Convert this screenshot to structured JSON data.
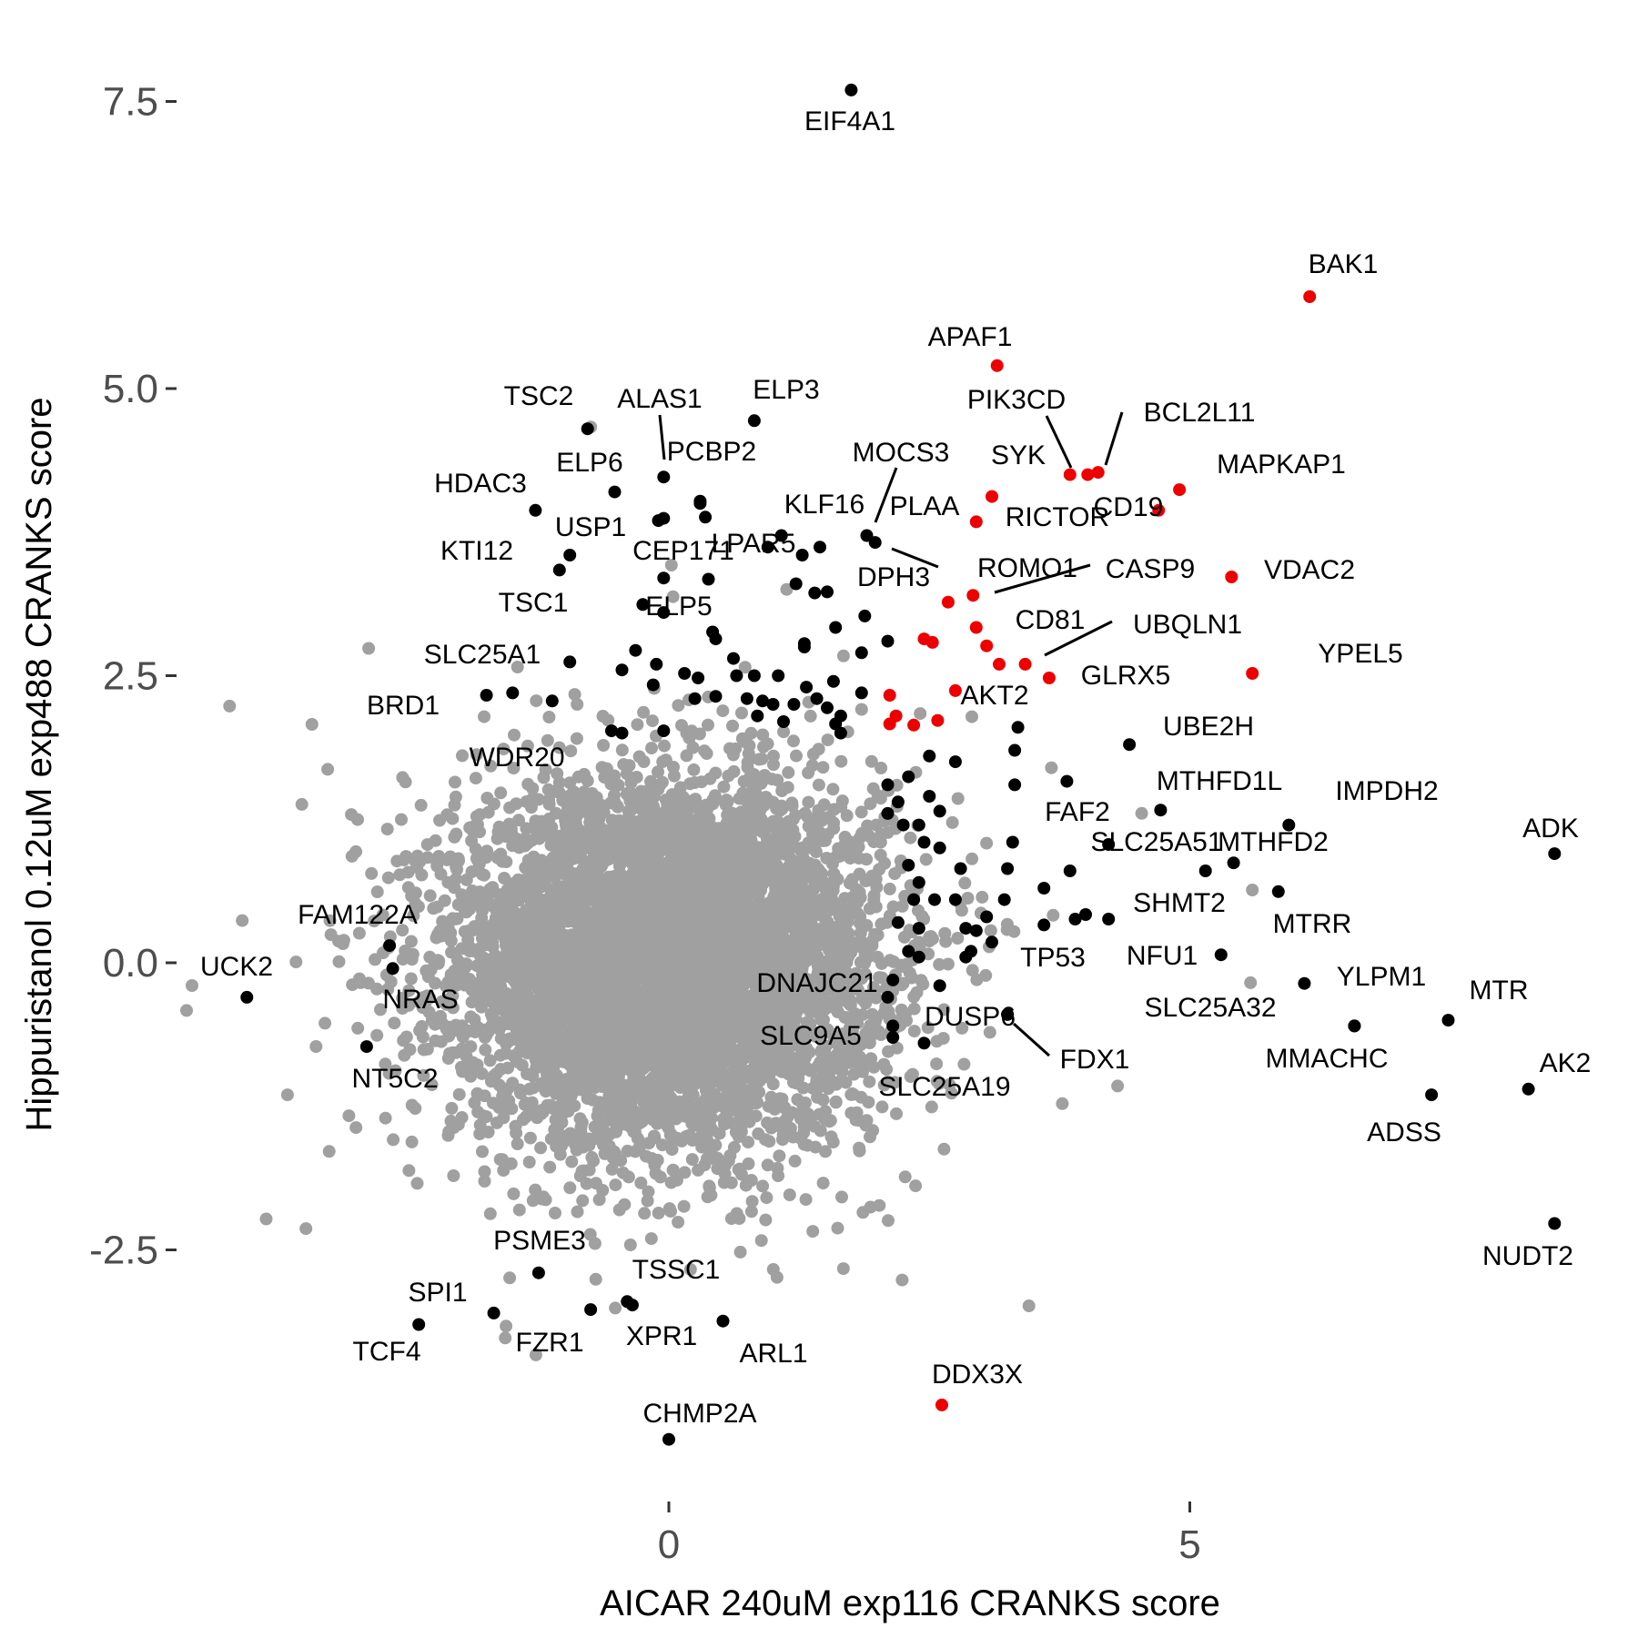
{
  "chart_data": {
    "type": "scatter",
    "title": "",
    "xlabel": "AICAR 240uM exp116 CRANKS score",
    "ylabel": "Hippuristanol 0.12uM exp488 CRANKS score",
    "xlim": [
      -4.4,
      9.1
    ],
    "ylim": [
      -4.5,
      7.6
    ],
    "x_ticks": [
      0,
      5
    ],
    "x_tick_labels": [
      "0",
      "5"
    ],
    "y_ticks": [
      -2.5,
      0,
      2.5,
      5,
      7.5
    ],
    "y_tick_labels": [
      "-2.5",
      "0.0",
      "2.5",
      "5.0",
      "7.5"
    ],
    "grid": false,
    "legend": "none",
    "colors": {
      "background": "#a0a0a0",
      "highlight": "#000000",
      "red": "#ee0000"
    },
    "cloud": {
      "center": [
        0.0,
        0.0
      ],
      "sd": [
        1.3,
        0.95
      ],
      "count": 6000,
      "outlier_count": 260
    },
    "series": [
      {
        "color": "#ee0000",
        "points": [
          {
            "label": "BAK1",
            "x": 6.15,
            "y": 5.8
          },
          {
            "label": "APAF1",
            "x": 3.15,
            "y": 5.2
          },
          {
            "label": "PIK3CD",
            "x": 3.85,
            "y": 4.25
          },
          {
            "label": "SYK",
            "x": 4.02,
            "y": 4.25
          },
          {
            "label": "BCL2L11",
            "x": 4.12,
            "y": 4.27
          },
          {
            "label": "MAPKAP1",
            "x": 4.9,
            "y": 4.12
          },
          {
            "label": "CD19",
            "x": 4.7,
            "y": 3.94
          },
          {
            "label": "RICTOR",
            "x": 3.1,
            "y": 4.06
          },
          {
            "label": "PLAA",
            "x": 2.95,
            "y": 3.84
          },
          {
            "label": "VDAC2",
            "x": 5.4,
            "y": 3.36
          },
          {
            "label": "CASP9",
            "x": 2.92,
            "y": 3.2
          },
          {
            "label": "ROMO1",
            "x": 2.68,
            "y": 3.14
          },
          {
            "label": "CD81",
            "x": 2.95,
            "y": 2.92
          },
          {
            "label": "YPEL5",
            "x": 5.6,
            "y": 2.52
          },
          {
            "label": "UBQLN1",
            "x": 3.42,
            "y": 2.6
          },
          {
            "label": "GLRX5",
            "x": 3.65,
            "y": 2.48
          },
          {
            "label": "AKT2",
            "x": 2.12,
            "y": 2.33
          },
          {
            "label": "DDX3X",
            "x": 2.62,
            "y": -3.85
          },
          {
            "x": 2.45,
            "y": 2.82
          },
          {
            "x": 2.53,
            "y": 2.79
          },
          {
            "x": 3.05,
            "y": 2.76
          },
          {
            "x": 3.17,
            "y": 2.6
          },
          {
            "x": 2.75,
            "y": 2.37
          },
          {
            "x": 2.18,
            "y": 2.15
          },
          {
            "x": 2.12,
            "y": 2.08
          },
          {
            "x": 2.35,
            "y": 2.07
          },
          {
            "x": 2.58,
            "y": 2.11
          }
        ]
      },
      {
        "color": "#000000",
        "points": [
          {
            "label": "EIF4A1",
            "x": 1.75,
            "y": 7.6
          },
          {
            "label": "ELP3",
            "x": 0.82,
            "y": 4.72
          },
          {
            "label": "TSC2",
            "x": -0.78,
            "y": 4.65
          },
          {
            "label": "ALAS1",
            "x": -0.05,
            "y": 4.23
          },
          {
            "label": "PCBP2",
            "x": 0.3,
            "y": 4.02
          },
          {
            "label": "ELP6",
            "x": -0.52,
            "y": 4.1
          },
          {
            "label": "HDAC3",
            "x": -1.28,
            "y": 3.94
          },
          {
            "label": "USP1",
            "x": -0.1,
            "y": 3.85
          },
          {
            "label": "MOCS3",
            "x": 1.98,
            "y": 3.66
          },
          {
            "label": "KLF16",
            "x": 1.9,
            "y": 3.72
          },
          {
            "label": "KTI12",
            "x": -0.95,
            "y": 3.55
          },
          {
            "label": "TSC1",
            "x": -1.05,
            "y": 3.42
          },
          {
            "label": "CEP171",
            "x": -0.05,
            "y": 3.35
          },
          {
            "label": "LPAR5",
            "x": 1.08,
            "y": 3.72
          },
          {
            "label": "DPH3",
            "x": 1.52,
            "y": 3.23
          },
          {
            "label": "ELP5",
            "x": -0.25,
            "y": 3.12
          },
          {
            "label": "SLC25A1",
            "x": -0.95,
            "y": 2.62
          },
          {
            "label": "BRD1",
            "x": -1.75,
            "y": 2.33
          },
          {
            "label": "WDR20",
            "x": -0.55,
            "y": 2.02
          },
          {
            "label": "UBE2H",
            "x": 4.42,
            "y": 1.9
          },
          {
            "label": "MTHFD1L",
            "x": 4.72,
            "y": 1.33
          },
          {
            "label": "IMPDH2",
            "x": 5.95,
            "y": 1.2
          },
          {
            "label": "ADK",
            "x": 8.5,
            "y": 0.95
          },
          {
            "label": "FAF2",
            "x": 3.82,
            "y": 1.58
          },
          {
            "label": "SLC25A51",
            "x": 4.22,
            "y": 1.03
          },
          {
            "label": "MTHFD2",
            "x": 5.42,
            "y": 0.87
          },
          {
            "label": "SHMT2",
            "x": 4.22,
            "y": 0.38
          },
          {
            "label": "MTRR",
            "x": 5.85,
            "y": 0.62
          },
          {
            "label": "TP53",
            "x": 3.6,
            "y": 0.33
          },
          {
            "label": "NFU1",
            "x": 5.3,
            "y": 0.07
          },
          {
            "label": "YLPM1",
            "x": 6.1,
            "y": -0.18
          },
          {
            "label": "MTR",
            "x": 7.48,
            "y": -0.5
          },
          {
            "label": "SLC25A32",
            "x": 6.58,
            "y": -0.55
          },
          {
            "label": "MMACHC",
            "x": 6.58,
            "y": -0.55
          },
          {
            "label": "AK2",
            "x": 8.25,
            "y": -1.1
          },
          {
            "label": "ADSS",
            "x": 7.32,
            "y": -1.15
          },
          {
            "label": "NUDT2",
            "x": 8.5,
            "y": -2.27
          },
          {
            "label": "FAM122A",
            "x": -2.68,
            "y": 0.15
          },
          {
            "label": "UCK2",
            "x": -4.05,
            "y": -0.3
          },
          {
            "label": "NRAS",
            "x": -2.65,
            "y": -0.05
          },
          {
            "label": "NT5C2",
            "x": -2.9,
            "y": -0.73
          },
          {
            "label": "DNAJC21",
            "x": 2.1,
            "y": -0.3
          },
          {
            "label": "DUSP6",
            "x": 3.25,
            "y": -0.45
          },
          {
            "label": "FDX1",
            "x": 3.25,
            "y": -0.45
          },
          {
            "label": "SLC9A5",
            "x": 2.15,
            "y": -0.65
          },
          {
            "label": "SLC25A19",
            "x": 2.45,
            "y": -0.7
          },
          {
            "label": "PSME3",
            "x": -1.25,
            "y": -2.7
          },
          {
            "label": "TSSC1",
            "x": -0.4,
            "y": -2.95
          },
          {
            "label": "SPI1",
            "x": -1.68,
            "y": -3.05
          },
          {
            "label": "TCF4",
            "x": -2.4,
            "y": -3.15
          },
          {
            "label": "FZR1",
            "x": -0.75,
            "y": -3.02
          },
          {
            "label": "XPR1",
            "x": -0.35,
            "y": -2.98
          },
          {
            "label": "ARL1",
            "x": 0.52,
            "y": -3.12
          },
          {
            "label": "CHMP2A",
            "x": 0.0,
            "y": -4.15
          },
          {
            "x": 0.3,
            "y": 4.0
          },
          {
            "x": 0.35,
            "y": 3.88
          },
          {
            "x": -0.05,
            "y": 3.87
          },
          {
            "x": 0.95,
            "y": 3.62
          },
          {
            "x": 1.28,
            "y": 3.55
          },
          {
            "x": 1.45,
            "y": 3.62
          },
          {
            "x": 0.38,
            "y": 3.34
          },
          {
            "x": 1.22,
            "y": 3.3
          },
          {
            "x": 1.4,
            "y": 3.22
          },
          {
            "x": 1.88,
            "y": 3.02
          },
          {
            "x": 1.6,
            "y": 2.92
          },
          {
            "x": -0.05,
            "y": 3.05
          },
          {
            "x": 0.42,
            "y": 2.88
          },
          {
            "x": 0.45,
            "y": 2.82
          },
          {
            "x": 1.3,
            "y": 2.78
          },
          {
            "x": 2.1,
            "y": 2.8
          },
          {
            "x": -0.32,
            "y": 2.72
          },
          {
            "x": -0.12,
            "y": 2.6
          },
          {
            "x": 0.62,
            "y": 2.65
          },
          {
            "x": 1.85,
            "y": 2.7
          },
          {
            "x": -1.5,
            "y": 2.35
          },
          {
            "x": -1.12,
            "y": 2.28
          },
          {
            "x": 1.3,
            "y": 2.75
          },
          {
            "x": 0.15,
            "y": 2.52
          },
          {
            "x": 0.28,
            "y": 2.48
          },
          {
            "x": 0.65,
            "y": 2.5
          },
          {
            "x": 0.82,
            "y": 2.5
          },
          {
            "x": 1.05,
            "y": 2.5
          },
          {
            "x": 1.58,
            "y": 2.45
          },
          {
            "x": 1.32,
            "y": 2.4
          },
          {
            "x": -0.45,
            "y": 2.55
          },
          {
            "x": -0.15,
            "y": 2.42
          },
          {
            "x": 0.25,
            "y": 2.3
          },
          {
            "x": 0.45,
            "y": 2.32
          },
          {
            "x": 0.75,
            "y": 2.3
          },
          {
            "x": 0.9,
            "y": 2.28
          },
          {
            "x": 1.0,
            "y": 2.25
          },
          {
            "x": 1.2,
            "y": 2.25
          },
          {
            "x": 1.42,
            "y": 2.3
          },
          {
            "x": 1.52,
            "y": 2.22
          },
          {
            "x": 1.65,
            "y": 2.15
          },
          {
            "x": 1.85,
            "y": 2.35
          },
          {
            "x": 0.85,
            "y": 2.15
          },
          {
            "x": 1.1,
            "y": 2.1
          },
          {
            "x": 1.65,
            "y": 2.0
          },
          {
            "x": -0.45,
            "y": 2.0
          },
          {
            "x": -0.05,
            "y": 2.02
          },
          {
            "x": 1.6,
            "y": 2.08
          },
          {
            "x": 3.35,
            "y": 2.05
          },
          {
            "x": 3.32,
            "y": 1.85
          },
          {
            "x": 2.5,
            "y": 1.8
          },
          {
            "x": 2.75,
            "y": 1.75
          },
          {
            "x": 2.3,
            "y": 1.62
          },
          {
            "x": 3.32,
            "y": 1.55
          },
          {
            "x": 2.1,
            "y": 1.55
          },
          {
            "x": 2.2,
            "y": 1.4
          },
          {
            "x": 2.5,
            "y": 1.45
          },
          {
            "x": 2.1,
            "y": 1.3
          },
          {
            "x": 2.25,
            "y": 1.2
          },
          {
            "x": 2.4,
            "y": 1.2
          },
          {
            "x": 2.6,
            "y": 1.32
          },
          {
            "x": 2.45,
            "y": 1.05
          },
          {
            "x": 2.6,
            "y": 1.0
          },
          {
            "x": 2.8,
            "y": 0.82
          },
          {
            "x": 3.3,
            "y": 1.05
          },
          {
            "x": 3.25,
            "y": 0.82
          },
          {
            "x": 3.85,
            "y": 0.8
          },
          {
            "x": 2.3,
            "y": 0.85
          },
          {
            "x": 2.4,
            "y": 0.7
          },
          {
            "x": 2.35,
            "y": 0.55
          },
          {
            "x": 2.55,
            "y": 0.55
          },
          {
            "x": 2.75,
            "y": 0.55
          },
          {
            "x": 2.2,
            "y": 0.35
          },
          {
            "x": 2.4,
            "y": 0.3
          },
          {
            "x": 2.85,
            "y": 0.3
          },
          {
            "x": 3.22,
            "y": 0.55
          },
          {
            "x": 3.05,
            "y": 0.4
          },
          {
            "x": 2.95,
            "y": 0.28
          },
          {
            "x": 3.6,
            "y": 0.65
          },
          {
            "x": 3.9,
            "y": 0.38
          },
          {
            "x": 4.0,
            "y": 0.42
          },
          {
            "x": 3.1,
            "y": 0.18
          },
          {
            "x": 2.85,
            "y": 0.05
          },
          {
            "x": 2.9,
            "y": 0.1
          },
          {
            "x": 2.3,
            "y": 0.1
          },
          {
            "x": 2.4,
            "y": 0.05
          },
          {
            "x": 2.6,
            "y": -0.2
          },
          {
            "x": 2.15,
            "y": -0.55
          },
          {
            "x": 2.15,
            "y": -0.15
          },
          {
            "x": 5.15,
            "y": 0.8
          }
        ]
      }
    ]
  }
}
